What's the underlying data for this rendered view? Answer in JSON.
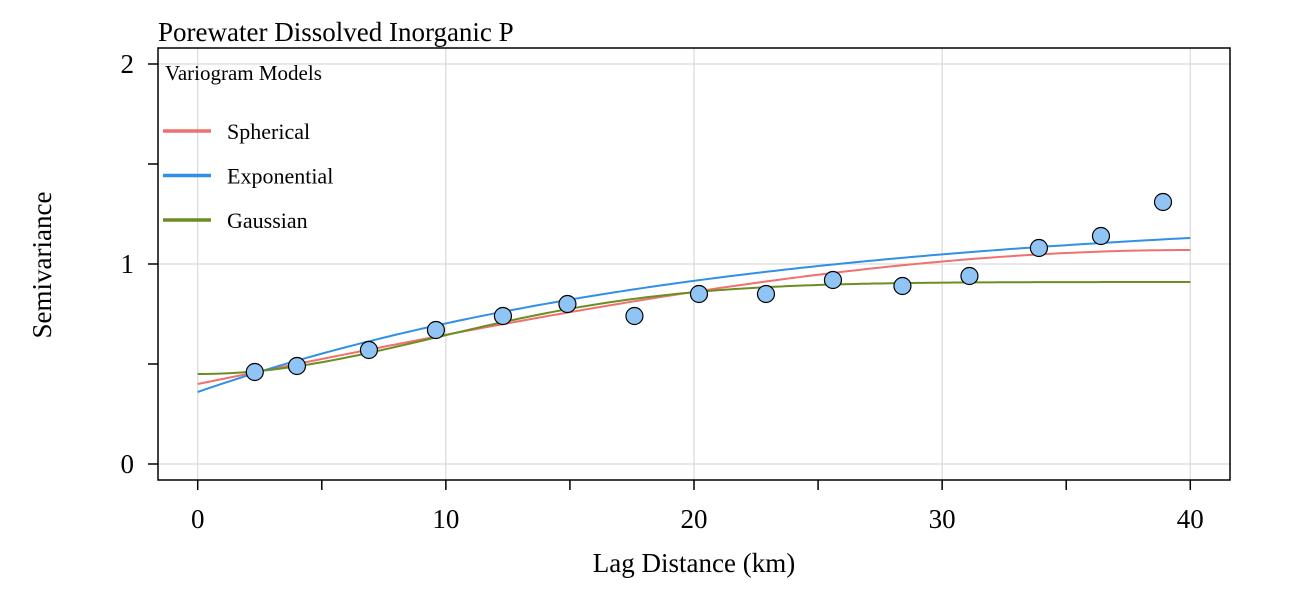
{
  "chart_data": {
    "type": "scatter",
    "title": "Porewater Dissolved Inorganic P",
    "xlabel": "Lag Distance (km)",
    "ylabel": "Semivariance",
    "xlim": [
      -1.6,
      41.6
    ],
    "ylim": [
      -0.08,
      2.08
    ],
    "x_ticks": [
      0,
      10,
      20,
      30,
      40
    ],
    "x_minor_ticks": [
      5,
      15,
      25,
      35
    ],
    "y_ticks": [
      0,
      1,
      2
    ],
    "y_minor_ticks": [
      0.5,
      1.5
    ],
    "grid": true,
    "legend": {
      "title": "Variogram Models",
      "position": "top-left",
      "entries": [
        {
          "name": "Spherical",
          "color": "#F07070"
        },
        {
          "name": "Exponential",
          "color": "#3090E8"
        },
        {
          "name": "Gaussian",
          "color": "#6B8E23"
        }
      ]
    },
    "points": {
      "color": "#90C4F4",
      "edge_color": "#000000",
      "x": [
        2.3,
        4.0,
        6.9,
        9.6,
        12.3,
        14.9,
        17.6,
        20.2,
        22.9,
        25.6,
        28.4,
        31.1,
        33.9,
        36.4,
        38.9
      ],
      "y": [
        0.46,
        0.49,
        0.57,
        0.67,
        0.74,
        0.8,
        0.74,
        0.85,
        0.85,
        0.92,
        0.89,
        0.94,
        1.08,
        1.14,
        1.31
      ]
    },
    "model_curves": [
      {
        "name": "Spherical",
        "color": "#F07070",
        "nugget": 0.4,
        "partial_sill": 0.67,
        "range": 40
      },
      {
        "name": "Exponential",
        "color": "#3090E8",
        "nugget": 0.36,
        "partial_sill": 0.905,
        "range": 21
      },
      {
        "name": "Gaussian",
        "color": "#6B8E23",
        "nugget": 0.45,
        "partial_sill": 0.46,
        "range": 13.5
      }
    ]
  }
}
